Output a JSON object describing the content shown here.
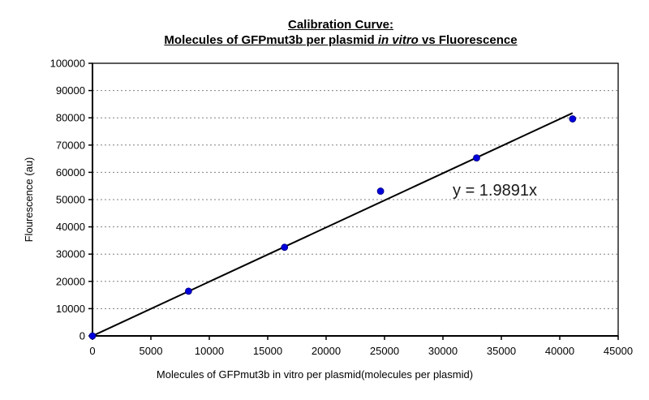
{
  "title": {
    "line1": "Calibration Curve:",
    "line2_prefix": "Molecules of GFPmut3b per plasmid ",
    "line2_italic": "in vitro",
    "line2_suffix": " vs Fluorescence"
  },
  "chart_data": {
    "type": "scatter",
    "title": "Calibration Curve: Molecules of GFPmut3b per plasmid in vitro vs Fluorescence",
    "xlabel": "Molecules of GFPmut3b in vitro per plasmid(molecules per plasmid)",
    "ylabel": "Flourescence (au)",
    "xlim": [
      0,
      45000
    ],
    "ylim": [
      0,
      100000
    ],
    "x_ticks": [
      0,
      5000,
      10000,
      15000,
      20000,
      25000,
      30000,
      35000,
      40000,
      45000
    ],
    "y_ticks": [
      0,
      10000,
      20000,
      30000,
      40000,
      50000,
      60000,
      70000,
      80000,
      90000,
      100000
    ],
    "grid": "horizontal-dashed",
    "legend": "none",
    "points": [
      {
        "x": 0,
        "y": 0
      },
      {
        "x": 8220,
        "y": 16400
      },
      {
        "x": 16440,
        "y": 32500
      },
      {
        "x": 24660,
        "y": 53100
      },
      {
        "x": 32880,
        "y": 65300
      },
      {
        "x": 41100,
        "y": 79600
      }
    ],
    "trendline": {
      "equation": "y = 1.9891x",
      "slope": 1.9891,
      "intercept": 0,
      "x_start": 0,
      "x_end": 41100
    },
    "colors": {
      "marker": "#0000dd",
      "marker_edge": "#000080",
      "trendline": "#000000",
      "grid": "#808080",
      "axis": "#000000",
      "background": "#ffffff"
    }
  }
}
